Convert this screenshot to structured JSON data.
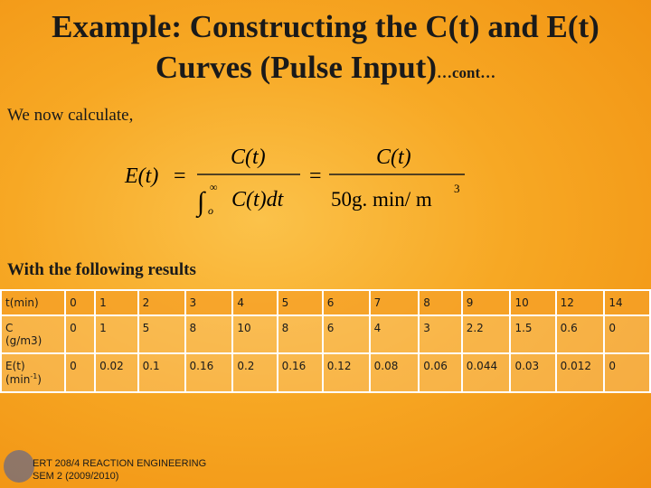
{
  "header": {
    "title_line1": "Example: Constructing the C(t) and E(t)",
    "title_line2": "Curves (Pulse Input)",
    "title_suffix": "…cont…"
  },
  "intro": "We now calculate,",
  "formula": {
    "lhs": "E(t)",
    "eq1": "=",
    "num1": "C(t)",
    "int_upper": "∞",
    "int_lower": "o",
    "den1": "C(t)dt",
    "eq2": "=",
    "num2": "C(t)",
    "den2": "50g. min/ m",
    "den2_exp": "3"
  },
  "results_label": "With the following results",
  "table": {
    "header": {
      "label": "t(min)",
      "cells": [
        0,
        1,
        2,
        3,
        4,
        5,
        6,
        7,
        8,
        9,
        10,
        12,
        14
      ]
    },
    "rows": [
      {
        "label": "C",
        "unit": "(g/m3)",
        "cells": [
          0,
          1,
          5,
          8,
          10,
          8,
          6,
          4,
          3,
          2.2,
          1.5,
          0.6,
          0
        ]
      },
      {
        "label": "E(t)",
        "unit": "(min",
        "unit_sup": "-1",
        "unit_end": ")",
        "cells": [
          0,
          0.02,
          0.1,
          0.16,
          0.2,
          0.16,
          0.12,
          0.08,
          0.06,
          0.044,
          0.03,
          0.012,
          0
        ]
      }
    ]
  },
  "footer": {
    "line1": "ERT 208/4 REACTION ENGINEERING",
    "line2": "SEM 2 (2009/2010)"
  }
}
